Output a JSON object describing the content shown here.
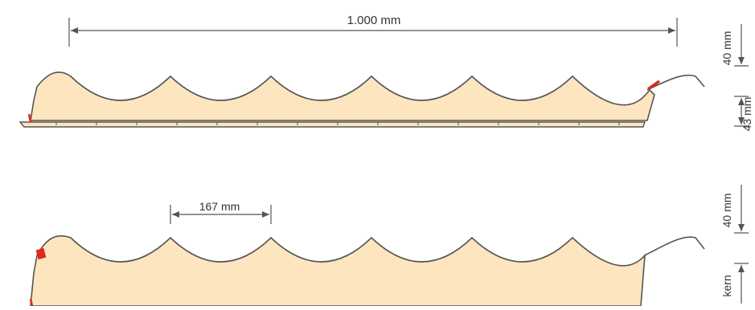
{
  "colors": {
    "panel_fill": "#fde5bf",
    "outline": "#555555",
    "dimension_line": "#555555",
    "seal_red": "#e0281e",
    "text": "#333333",
    "background": "#ffffff"
  },
  "top_panel": {
    "width_label": "1.000 mm",
    "rib_height_label": "40 mm",
    "thickness_label": "43 mm"
  },
  "bottom_panel": {
    "pitch_label": "167 mm",
    "rib_height_label": "40 mm",
    "core_label": "kern"
  }
}
